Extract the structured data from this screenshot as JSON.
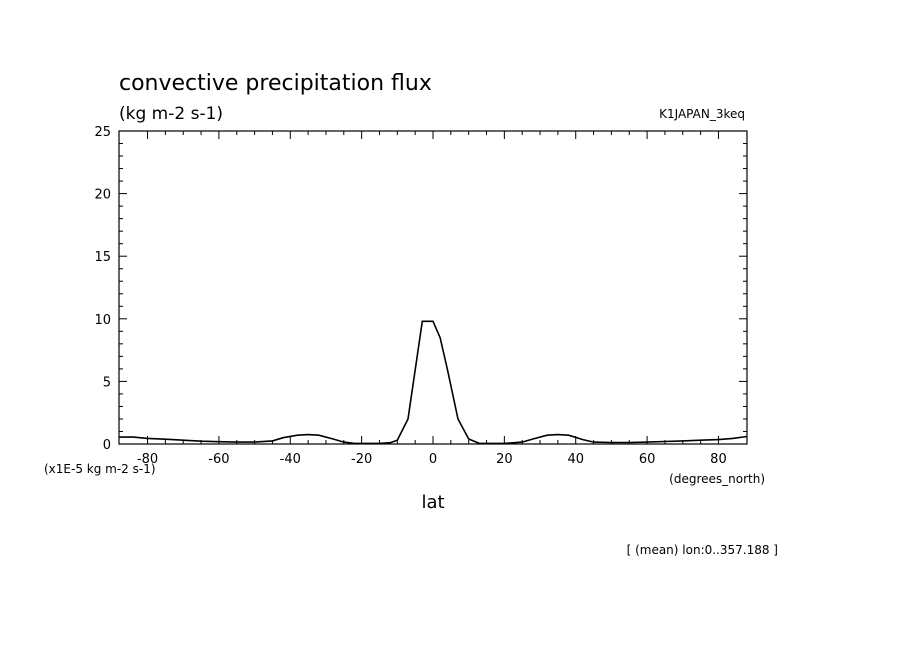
{
  "chart_data": {
    "type": "line",
    "title": "convective precipitation flux",
    "subtitle": "(kg m-2 s-1)",
    "run_label": "K1JAPAN_3keq",
    "xlabel": "lat",
    "x_units": "(degrees_north)",
    "y_scale_label": "(x1E-5 kg m-2 s-1)",
    "footnote": "[ (mean) lon:0..357.188 ]",
    "xlim": [
      -88,
      88
    ],
    "ylim": [
      0,
      25
    ],
    "x_ticks": [
      -80,
      -60,
      -40,
      -20,
      0,
      20,
      40,
      60,
      80
    ],
    "x_tick_labels": [
      "-80",
      "-60",
      "-40",
      "-20",
      "0",
      "20",
      "40",
      "60",
      "80"
    ],
    "y_ticks": [
      0,
      5,
      10,
      15,
      20,
      25
    ],
    "y_tick_labels": [
      "0",
      "5",
      "10",
      "15",
      "20",
      "25"
    ],
    "grid": false,
    "series": [
      {
        "x": [
          -88,
          -84,
          -80,
          -75,
          -70,
          -65,
          -60,
          -55,
          -50,
          -45,
          -42,
          -38,
          -35,
          -32,
          -28,
          -25,
          -22,
          -18,
          -15,
          -12,
          -10,
          -7,
          -3,
          0,
          2,
          4,
          7,
          10,
          13,
          16,
          20,
          25,
          28,
          32,
          35,
          38,
          42,
          45,
          50,
          55,
          60,
          65,
          70,
          75,
          80,
          84,
          88
        ],
        "y": [
          0.55,
          0.55,
          0.45,
          0.38,
          0.3,
          0.22,
          0.18,
          0.15,
          0.15,
          0.25,
          0.5,
          0.7,
          0.75,
          0.7,
          0.4,
          0.15,
          0.05,
          0.05,
          0.05,
          0.1,
          0.3,
          2.0,
          9.8,
          9.8,
          8.5,
          6.0,
          2.0,
          0.4,
          0.05,
          0.05,
          0.05,
          0.15,
          0.4,
          0.7,
          0.75,
          0.7,
          0.35,
          0.15,
          0.12,
          0.12,
          0.15,
          0.2,
          0.25,
          0.3,
          0.35,
          0.45,
          0.6
        ]
      }
    ]
  }
}
